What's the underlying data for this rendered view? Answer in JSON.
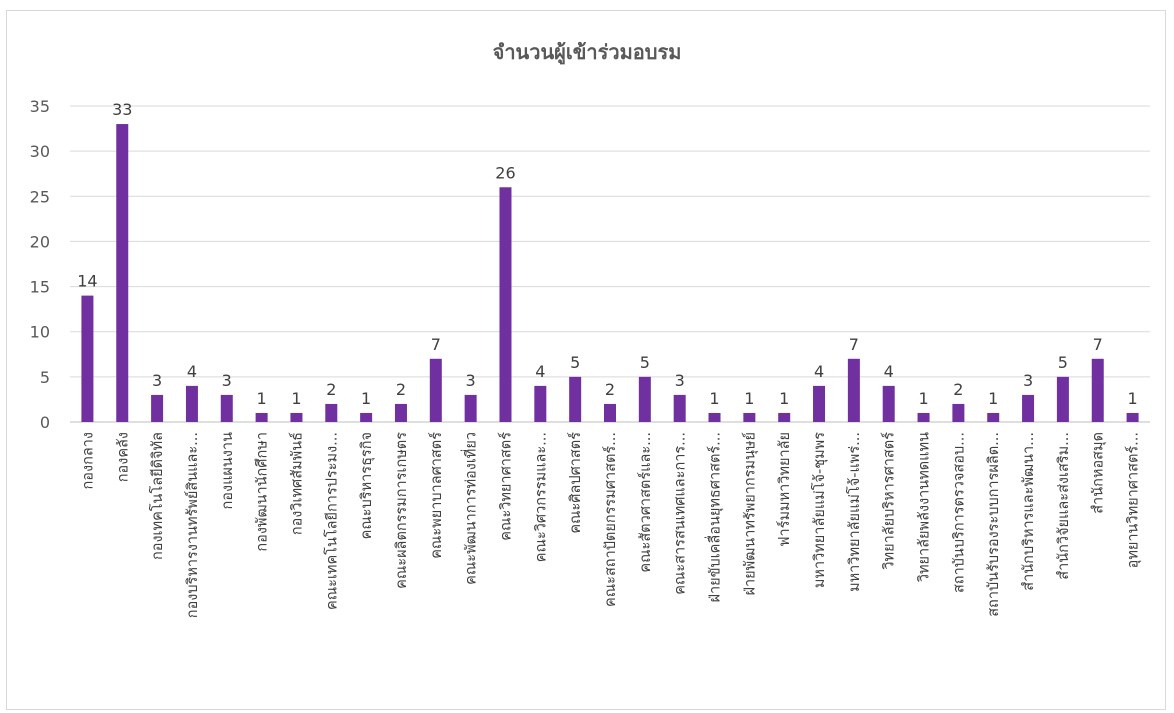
{
  "chart_data": {
    "type": "bar",
    "title": "จำนวนผู้เข้าร่วมอบรม",
    "xlabel": "",
    "ylabel": "",
    "ylim": [
      0,
      35
    ],
    "yticks": [
      0,
      5,
      10,
      15,
      20,
      25,
      30,
      35
    ],
    "grid": true,
    "legend": "none",
    "bar_color": "#7030a0",
    "categories": [
      "กองกลาง",
      "กองคลัง",
      "กองเทคโนโลยีดิจิทัล",
      "กองบริหารงานทรัพย์สินและ...",
      "กองแผนงาน",
      "กองพัฒนานักศึกษา",
      "กองวิเทศสัมพันธ์",
      "คณะเทคโนโลยีการประมง...",
      "คณะบริหารธุรกิจ",
      "คณะผลิตกรรมการเกษตร",
      "คณะพยาบาลศาสตร์",
      "คณะพัฒนาการท่องเที่ยว",
      "คณะวิทยาศาสตร์",
      "คณะวิศวกรรมและ...",
      "คณะศิลปศาสตร์",
      "คณะสถาปัตยกรรมศาสตร์...",
      "คณะสัตวศาสตร์และ...",
      "คณะสารสนเทศและการ...",
      "ฝ่ายขับเคลื่อนยุทธศาสตร์...",
      "ฝ่ายพัฒนาทรัพยากรมนุษย์",
      "ฟาร์มมหาวิทยาลัย",
      "มหาวิทยาลัยแม่โจ้-ชุมพร",
      "มหาวิทยาลัยแม่โจ้-แพร่...",
      "วิทยาลัยบริหารศาสตร์",
      "วิทยาลัยพลังงานทดแทน",
      "สถาบันบริการตรวจสอบ...",
      "สถาบันรับรองระบบการผลิต...",
      "สำนักบริหารและพัฒนา...",
      "สำนักวิจัยและส่งเสริม...",
      "สำนักหอสมุด",
      "อุทยานวิทยาศาสตร์..."
    ],
    "values": [
      14,
      33,
      3,
      4,
      3,
      1,
      1,
      2,
      1,
      2,
      7,
      3,
      26,
      4,
      5,
      2,
      5,
      3,
      1,
      1,
      1,
      4,
      7,
      4,
      1,
      2,
      1,
      3,
      5,
      7,
      1
    ]
  }
}
